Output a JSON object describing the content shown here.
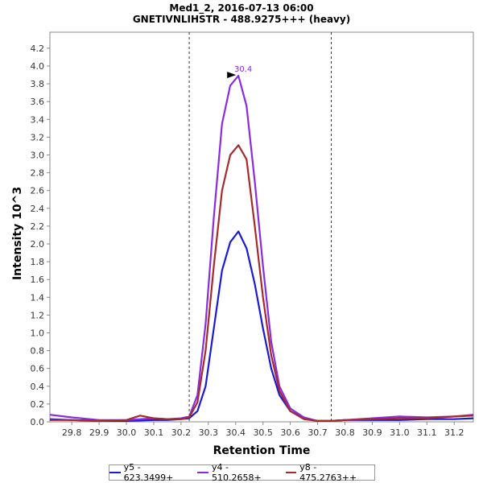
{
  "chart_data": {
    "type": "line",
    "title": "Med1_2, 2016-07-13 06:00",
    "subtitle": "GNETIVNLIHSTR - 488.9275+++ (heavy)",
    "xlabel": "Retention Time",
    "ylabel": "Intensity 10^3",
    "xlim": [
      29.72,
      31.27
    ],
    "ylim": [
      0,
      4.38
    ],
    "xticks": [
      29.8,
      29.9,
      30.0,
      30.1,
      30.2,
      30.3,
      30.4,
      30.5,
      30.6,
      30.7,
      30.8,
      30.9,
      31.0,
      31.1,
      31.2
    ],
    "yticks": [
      0.0,
      0.2,
      0.4,
      0.6,
      0.8,
      1.0,
      1.2,
      1.4,
      1.6,
      1.8,
      2.0,
      2.2,
      2.4,
      2.6,
      2.8,
      3.0,
      3.2,
      3.4,
      3.6,
      3.8,
      4.0,
      4.2
    ],
    "boundaries": [
      30.23,
      30.75
    ],
    "peak_annotation": {
      "label": "30.4",
      "x": 30.41,
      "y": 3.89,
      "color": "#8a2be2"
    },
    "legend_position": "bottom",
    "series": [
      {
        "name": "y5 - 623.3499+",
        "color": "#1a1ad6",
        "x": [
          29.72,
          29.8,
          29.9,
          30.0,
          30.1,
          30.15,
          30.2,
          30.23,
          30.26,
          30.29,
          30.32,
          30.35,
          30.38,
          30.41,
          30.44,
          30.47,
          30.5,
          30.53,
          30.56,
          30.6,
          30.65,
          30.7,
          30.75,
          30.8,
          30.9,
          31.0,
          31.1,
          31.2,
          31.27
        ],
        "y": [
          0.03,
          0.02,
          0.01,
          0.01,
          0.02,
          0.02,
          0.03,
          0.04,
          0.12,
          0.4,
          1.05,
          1.7,
          2.02,
          2.14,
          1.95,
          1.55,
          1.05,
          0.6,
          0.3,
          0.12,
          0.04,
          0.01,
          0.01,
          0.02,
          0.02,
          0.02,
          0.03,
          0.03,
          0.04
        ]
      },
      {
        "name": "y4 - 510.2658+",
        "color": "#8a2be2",
        "x": [
          29.72,
          29.8,
          29.9,
          30.0,
          30.1,
          30.15,
          30.2,
          30.23,
          30.26,
          30.29,
          30.32,
          30.35,
          30.38,
          30.41,
          30.44,
          30.47,
          30.5,
          30.53,
          30.56,
          30.6,
          30.65,
          30.7,
          30.75,
          30.8,
          30.9,
          31.0,
          31.1,
          31.2,
          31.27
        ],
        "y": [
          0.08,
          0.05,
          0.02,
          0.02,
          0.04,
          0.03,
          0.04,
          0.06,
          0.3,
          1.1,
          2.3,
          3.35,
          3.78,
          3.89,
          3.55,
          2.7,
          1.75,
          0.9,
          0.4,
          0.15,
          0.05,
          0.01,
          0.01,
          0.02,
          0.04,
          0.06,
          0.05,
          0.06,
          0.08
        ]
      },
      {
        "name": "y8 - 475.2763++",
        "color": "#a52a2a",
        "x": [
          29.72,
          29.8,
          29.9,
          30.0,
          30.05,
          30.1,
          30.15,
          30.2,
          30.23,
          30.26,
          30.29,
          30.32,
          30.35,
          30.38,
          30.41,
          30.44,
          30.47,
          30.5,
          30.53,
          30.56,
          30.6,
          30.65,
          30.7,
          30.75,
          30.8,
          30.9,
          31.0,
          31.1,
          31.2,
          31.27
        ],
        "y": [
          0.02,
          0.02,
          0.01,
          0.02,
          0.07,
          0.04,
          0.03,
          0.03,
          0.05,
          0.22,
          0.8,
          1.75,
          2.6,
          3.0,
          3.11,
          2.95,
          2.2,
          1.4,
          0.75,
          0.35,
          0.12,
          0.03,
          0.01,
          0.01,
          0.02,
          0.03,
          0.04,
          0.04,
          0.06,
          0.07
        ]
      }
    ]
  }
}
